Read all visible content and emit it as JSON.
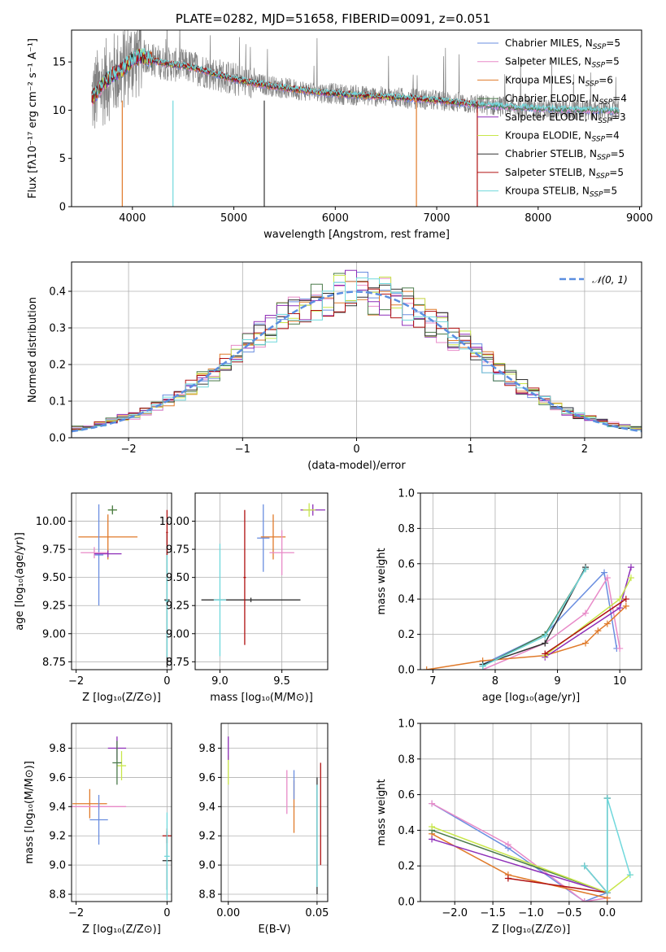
{
  "figure_title": "PLATE=0282, MJD=51658, FIBERID=0091, z=0.051",
  "colors": {
    "Chabrier MILES": "#6a8ee0",
    "Salpeter MILES": "#e88ac8",
    "Kroupa MILES": "#e07a2a",
    "Chabrier ELODIE": "#4a7a4a",
    "Salpeter ELODIE": "#8e2fb8",
    "Kroupa ELODIE": "#c8e64a",
    "Chabrier STELIB": "#333333",
    "Salpeter STELIB": "#b01010",
    "Kroupa STELIB": "#70d8dc",
    "normal_curve": "#5b8ee0",
    "data_spectrum": "#808080"
  },
  "chart_data": [
    {
      "id": "spectrum",
      "type": "line",
      "title": "PLATE=0282, MJD=51658, FIBERID=0091, z=0.051",
      "xlabel": "wavelength [Angstrom, rest frame]",
      "ylabel": "Flux [fλ10⁻¹⁷ erg cm⁻² s⁻¹ A⁻¹]",
      "xlim": [
        3400,
        9020
      ],
      "ylim": [
        0,
        18.3
      ],
      "xticks": [
        4000,
        5000,
        6000,
        7000,
        8000,
        9000
      ],
      "yticks": [
        0,
        5,
        10,
        15
      ],
      "legend_position": "top-right",
      "legend": [
        "Chabrier MILES, N_SSP=5",
        "Salpeter MILES, N_SSP=5",
        "Kroupa MILES, N_SSP=6",
        "Chabrier ELODIE, N_SSP=4",
        "Salpeter ELODIE, N_SSP=3",
        "Kroupa ELODIE, N_SSP=4",
        "Chabrier STELIB, N_SSP=5",
        "Salpeter STELIB, N_SSP=5",
        "Kroupa STELIB, N_SSP=5"
      ],
      "legend_main": [
        "Chabrier MILES, N",
        "Salpeter MILES, N",
        "Kroupa MILES, N",
        "Chabrier ELODIE, N",
        "Salpeter ELODIE, N",
        "Kroupa ELODIE, N",
        "Chabrier STELIB, N",
        "Salpeter STELIB, N",
        "Kroupa STELIB, N"
      ],
      "legend_sub": "SSP",
      "legend_val": [
        "=5",
        "=5",
        "=6",
        "=4",
        "=3",
        "=4",
        "=5",
        "=5",
        "=5"
      ],
      "model_continuum": {
        "x": [
          3600,
          3700,
          3800,
          3900,
          4000,
          4100,
          4200,
          4300,
          4400,
          4500,
          4600,
          4800,
          5000,
          5200,
          5500,
          5800,
          6000,
          6300,
          6600,
          6800,
          7000,
          7200,
          7400
        ],
        "y": [
          11.2,
          12.6,
          13.6,
          14.2,
          15.3,
          15.6,
          15.2,
          14.9,
          14.7,
          14.6,
          14.4,
          13.8,
          13.2,
          12.8,
          12.3,
          11.9,
          11.7,
          11.5,
          11.3,
          11.2,
          11.0,
          10.8,
          10.6
        ]
      },
      "extra_models": {
        "x": [
          7000,
          7400,
          7800,
          8200,
          8600,
          8800
        ],
        "y": [
          11.0,
          10.6,
          10.3,
          10.1,
          10.0,
          9.9
        ]
      },
      "dips": [
        {
          "x": 3900,
          "series": "Kroupa MILES",
          "y": 0
        },
        {
          "x": 4400,
          "series": "Kroupa STELIB",
          "y": 0
        },
        {
          "x": 5300,
          "series": "Chabrier STELIB",
          "y": 0
        },
        {
          "x": 6800,
          "series": "Kroupa MILES",
          "y": 0
        },
        {
          "x": 7400,
          "series": "Salpeter STELIB",
          "y": 0
        }
      ]
    },
    {
      "id": "residuals",
      "type": "line",
      "xlabel": "(data-model)/error",
      "ylabel": "Normed distribution",
      "xlim": [
        -2.5,
        2.5
      ],
      "ylim": [
        0,
        0.48
      ],
      "xticks": [
        -2,
        -1,
        0,
        1,
        2
      ],
      "yticks": [
        0.0,
        0.1,
        0.2,
        0.3,
        0.4
      ],
      "grid": true,
      "legend_position": "top-right",
      "legend": [
        "𝒩(0, 1)"
      ],
      "bin_width": 0.1,
      "normal_curve": {
        "mean": 0,
        "sigma": 1
      }
    },
    {
      "id": "age_vs_Z",
      "type": "scatter",
      "xlabel": "Z [log₁₀(Z/Z⊙)]",
      "ylabel": "age  [log₁₀(age/yr)]",
      "xlim": [
        -2.1,
        0.1
      ],
      "ylim": [
        8.68,
        10.25
      ],
      "xticks": [
        -2,
        0
      ],
      "yticks": [
        8.75,
        9.0,
        9.25,
        9.5,
        9.75,
        10.0
      ],
      "grid": true,
      "points": [
        {
          "series": "Kroupa MILES",
          "x": -1.3,
          "y": 9.86,
          "xerr": 0.65,
          "yerr": 0.2
        },
        {
          "series": "Chabrier MILES",
          "x": -1.5,
          "y": 9.7,
          "xerr": 0.1,
          "yerr": 0.45
        },
        {
          "series": "Salpeter MILES",
          "x": -1.6,
          "y": 9.72,
          "xerr": 0.3,
          "yerr": 0.05
        },
        {
          "series": "Salpeter ELODIE",
          "x": -1.3,
          "y": 9.71,
          "xerr": 0.3,
          "yerr": 0.03
        },
        {
          "series": "Kroupa ELODIE",
          "x": -1.2,
          "y": 10.1,
          "xerr": 0.1,
          "yerr": 0.03
        },
        {
          "series": "Chabrier ELODIE",
          "x": -1.2,
          "y": 10.1,
          "xerr": 0.1,
          "yerr": 0.04
        },
        {
          "series": "Chabrier STELIB",
          "x": 0.0,
          "y": 9.3,
          "xerr": 0.06,
          "yerr": 0.6
        },
        {
          "series": "Kroupa STELIB",
          "x": 0.0,
          "y": 9.29,
          "xerr": 0.04,
          "yerr": 0.5
        },
        {
          "series": "Salpeter STELIB",
          "x": 0.0,
          "y": 9.9,
          "xerr": 0.02,
          "yerr": 0.2
        }
      ]
    },
    {
      "id": "age_vs_mass",
      "type": "scatter",
      "xlabel": "mass [log₁₀(M/M⊙)]",
      "xlim": [
        8.8,
        9.87
      ],
      "ylim": [
        8.68,
        10.25
      ],
      "xticks": [
        9.0,
        9.5
      ],
      "yticks": [
        8.75,
        9.0,
        9.25,
        9.5,
        9.75,
        10.0
      ],
      "grid": true,
      "points": [
        {
          "series": "Chabrier STELIB",
          "x": 9.25,
          "y": 9.3,
          "xerr": 0.4,
          "yerr": 0.02
        },
        {
          "series": "Kroupa STELIB",
          "x": 9.0,
          "y": 9.3,
          "xerr": 0.05,
          "yerr": 0.5
        },
        {
          "series": "Salpeter STELIB",
          "x": 9.2,
          "y": 9.5,
          "xerr": 0.01,
          "yerr": 0.6
        },
        {
          "series": "Chabrier MILES",
          "x": 9.35,
          "y": 9.85,
          "xerr": 0.05,
          "yerr": 0.3
        },
        {
          "series": "Kroupa MILES",
          "x": 9.43,
          "y": 9.86,
          "xerr": 0.1,
          "yerr": 0.2
        },
        {
          "series": "Salpeter MILES",
          "x": 9.5,
          "y": 9.72,
          "xerr": 0.1,
          "yerr": 0.2
        },
        {
          "series": "Salpeter ELODIE",
          "x": 9.75,
          "y": 10.1,
          "xerr": 0.1,
          "yerr": 0.05
        },
        {
          "series": "Kroupa ELODIE",
          "x": 9.72,
          "y": 10.1,
          "xerr": 0.05,
          "yerr": 0.06
        }
      ]
    },
    {
      "id": "massweight_vs_age",
      "type": "line",
      "xlabel": "age  [log₁₀(age/yr)]",
      "ylabel": "mass weight",
      "xlim": [
        6.8,
        10.35
      ],
      "ylim": [
        0,
        1.0
      ],
      "xticks": [
        7,
        8,
        9,
        10
      ],
      "yticks": [
        0.0,
        0.2,
        0.4,
        0.6,
        0.8,
        1.0
      ],
      "grid": true,
      "series": [
        {
          "name": "Chabrier MILES",
          "x": [
            7.8,
            8.8,
            9.75,
            9.95
          ],
          "y": [
            0.03,
            0.2,
            0.55,
            0.12
          ]
        },
        {
          "name": "Salpeter MILES",
          "x": [
            7.8,
            8.8,
            9.45,
            9.8,
            10.0
          ],
          "y": [
            0.0,
            0.15,
            0.32,
            0.52,
            0.12
          ]
        },
        {
          "name": "Kroupa MILES",
          "x": [
            6.9,
            7.8,
            8.8,
            9.45,
            9.65,
            9.8,
            10.1
          ],
          "y": [
            0.0,
            0.05,
            0.08,
            0.15,
            0.22,
            0.26,
            0.36
          ]
        },
        {
          "name": "Chabrier ELODIE",
          "x": [
            7.8,
            8.8,
            9.45
          ],
          "y": [
            0.02,
            0.2,
            0.57
          ]
        },
        {
          "name": "Salpeter ELODIE",
          "x": [
            8.8,
            10.0,
            10.18
          ],
          "y": [
            0.07,
            0.35,
            0.58
          ]
        },
        {
          "name": "Kroupa ELODIE",
          "x": [
            8.8,
            10.0,
            10.18
          ],
          "y": [
            0.08,
            0.4,
            0.52
          ]
        },
        {
          "name": "Chabrier STELIB",
          "x": [
            7.8,
            8.8,
            9.45
          ],
          "y": [
            0.03,
            0.15,
            0.58
          ]
        },
        {
          "name": "Salpeter STELIB",
          "x": [
            8.8,
            10.1
          ],
          "y": [
            0.09,
            0.4
          ]
        },
        {
          "name": "Kroupa STELIB",
          "x": [
            7.8,
            8.8,
            9.45
          ],
          "y": [
            0.02,
            0.19,
            0.57
          ]
        }
      ]
    },
    {
      "id": "mass_vs_Z",
      "type": "scatter",
      "xlabel": "Z [log₁₀(Z/Z⊙)]",
      "ylabel": "mass [log₁₀(M/M⊙)]",
      "xlim": [
        -2.1,
        0.1
      ],
      "ylim": [
        8.75,
        9.97
      ],
      "xticks": [
        -2,
        0
      ],
      "yticks": [
        8.8,
        9.0,
        9.2,
        9.4,
        9.6,
        9.8
      ],
      "grid": true,
      "points": [
        {
          "series": "Kroupa MILES",
          "x": -1.7,
          "y": 9.42,
          "xerr": 0.38,
          "yerr": 0.1
        },
        {
          "series": "Salpeter MILES",
          "x": -1.5,
          "y": 9.4,
          "xerr": 0.6,
          "yerr": 0.02
        },
        {
          "series": "Chabrier MILES",
          "x": -1.5,
          "y": 9.31,
          "xerr": 0.2,
          "yerr": 0.17
        },
        {
          "series": "Salpeter ELODIE",
          "x": -1.1,
          "y": 9.8,
          "xerr": 0.2,
          "yerr": 0.08
        },
        {
          "series": "Kroupa ELODIE",
          "x": -1.0,
          "y": 9.68,
          "xerr": 0.1,
          "yerr": 0.1
        },
        {
          "series": "Chabrier ELODIE",
          "x": -1.1,
          "y": 9.7,
          "xerr": 0.1,
          "yerr": 0.15
        },
        {
          "series": "Salpeter STELIB",
          "x": 0.0,
          "y": 9.2,
          "xerr": 0.1,
          "yerr": 0.05
        },
        {
          "series": "Chabrier STELIB",
          "x": 0.0,
          "y": 9.03,
          "xerr": 0.1,
          "yerr": 0.2
        },
        {
          "series": "Kroupa STELIB",
          "x": 0.0,
          "y": 9.06,
          "xerr": 0.06,
          "yerr": 0.3
        }
      ]
    },
    {
      "id": "mass_vs_EBV",
      "type": "scatter",
      "xlabel": "E(B-V)",
      "xlim": [
        -0.004,
        0.056
      ],
      "ylim": [
        8.75,
        9.97
      ],
      "xticks": [
        0.0,
        0.05
      ],
      "yticks": [
        8.8,
        9.0,
        9.2,
        9.4,
        9.6,
        9.8
      ],
      "grid": true,
      "points": [
        {
          "series": "Kroupa ELODIE",
          "x": 0.0,
          "y": 9.65,
          "yerr": 0.1
        },
        {
          "series": "Salpeter ELODIE",
          "x": 0.0,
          "y": 9.8,
          "yerr": 0.08
        },
        {
          "series": "Salpeter MILES",
          "x": 0.033,
          "y": 9.5,
          "yerr": 0.15
        },
        {
          "series": "Kroupa MILES",
          "x": 0.037,
          "y": 9.4,
          "yerr": 0.18
        },
        {
          "series": "Chabrier MILES",
          "x": 0.037,
          "y": 9.55,
          "yerr": 0.1
        },
        {
          "series": "Chabrier STELIB",
          "x": 0.05,
          "y": 9.2,
          "yerr": 0.4
        },
        {
          "series": "Kroupa STELIB",
          "x": 0.05,
          "y": 9.2,
          "yerr": 0.35
        },
        {
          "series": "Salpeter STELIB",
          "x": 0.052,
          "y": 9.35,
          "yerr": 0.35
        }
      ]
    },
    {
      "id": "massweight_vs_Z",
      "type": "line",
      "xlabel": "Z [log₁₀(Z/Z⊙)]",
      "ylabel": "mass weight",
      "xlim": [
        -2.45,
        0.45
      ],
      "ylim": [
        0,
        1.0
      ],
      "xticks": [
        -2.0,
        -1.5,
        -1.0,
        -0.5,
        0.0
      ],
      "yticks": [
        0.0,
        0.2,
        0.4,
        0.6,
        0.8,
        1.0
      ],
      "grid": true,
      "series": [
        {
          "name": "Chabrier MILES",
          "x": [
            -2.3,
            -1.3,
            -0.3,
            0.0
          ],
          "y": [
            0.55,
            0.3,
            0.0,
            0.05
          ]
        },
        {
          "name": "Salpeter MILES",
          "x": [
            -2.3,
            -1.3,
            -0.3,
            0.0
          ],
          "y": [
            0.55,
            0.32,
            0.0,
            0.02
          ]
        },
        {
          "name": "Kroupa MILES",
          "x": [
            -2.3,
            -1.3,
            0.0
          ],
          "y": [
            0.38,
            0.15,
            0.02
          ]
        },
        {
          "name": "Chabrier ELODIE",
          "x": [
            -2.3,
            0.0,
            0.0
          ],
          "y": [
            0.4,
            0.05,
            0.58
          ]
        },
        {
          "name": "Salpeter ELODIE",
          "x": [
            -2.3,
            0.0
          ],
          "y": [
            0.35,
            0.05
          ]
        },
        {
          "name": "Kroupa ELODIE",
          "x": [
            -2.3,
            0.0,
            0.3
          ],
          "y": [
            0.42,
            0.05,
            0.15
          ]
        },
        {
          "name": "Chabrier STELIB",
          "x": [
            -0.3,
            0.0,
            0.0
          ],
          "y": [
            0.2,
            0.05,
            0.58
          ]
        },
        {
          "name": "Salpeter STELIB",
          "x": [
            -1.3,
            0.0
          ],
          "y": [
            0.13,
            0.05
          ]
        },
        {
          "name": "Kroupa STELIB",
          "x": [
            -0.3,
            0.0,
            0.0,
            0.3
          ],
          "y": [
            0.2,
            0.05,
            0.58,
            0.15
          ]
        }
      ]
    }
  ]
}
